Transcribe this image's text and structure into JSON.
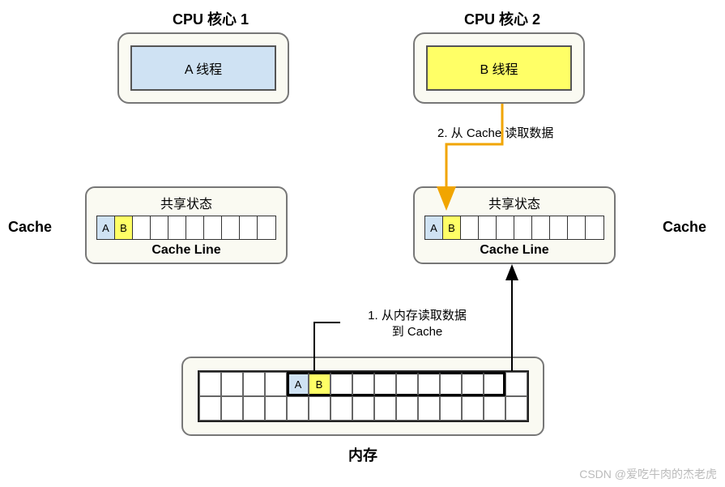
{
  "colors": {
    "thread_a_fill": "#cfe2f3",
    "thread_b_fill": "#ffff66",
    "panel_bg": "#fafaf2",
    "border": "#777777",
    "cell_border": "#333333",
    "arrow_orange": "#f1a500",
    "arrow_black": "#000000",
    "watermark": "#bbbbbb"
  },
  "cpu1": {
    "title": "CPU 核心 1",
    "thread_label": "A 线程"
  },
  "cpu2": {
    "title": "CPU 核心 2",
    "thread_label": "B 线程"
  },
  "step2_label": "2. 从 Cache 读取数据",
  "step1_label_line1": "1. 从内存读取数据",
  "step1_label_line2": "到 Cache",
  "cache_left_label": "Cache",
  "cache_right_label": "Cache",
  "cache_state_title": "共享状态",
  "cache_line_label": "Cache Line",
  "cache_cells": {
    "a": "A",
    "b": "B",
    "count": 10
  },
  "memory": {
    "label": "内存",
    "cols": 15,
    "a_col": 4,
    "b_col": 5,
    "a_label": "A",
    "b_label": "B",
    "highlight_start": 4,
    "highlight_end": 13
  },
  "watermark": "CSDN @爱吃牛肉的杰老虎"
}
